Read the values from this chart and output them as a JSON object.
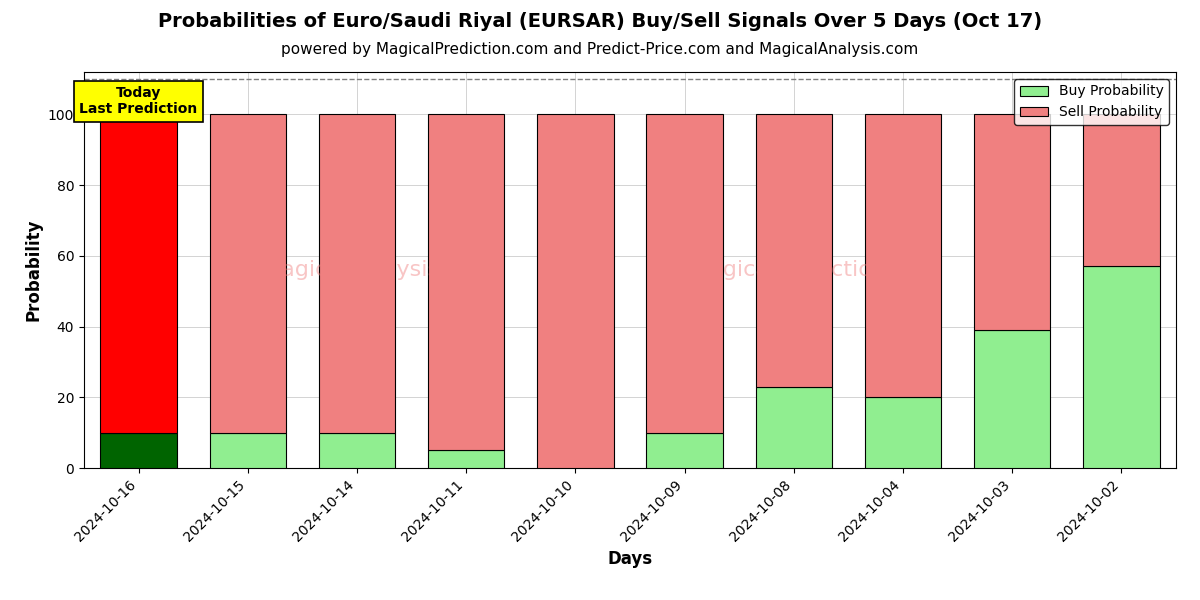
{
  "title": "Probabilities of Euro/Saudi Riyal (EURSAR) Buy/Sell Signals Over 5 Days (Oct 17)",
  "subtitle": "powered by MagicalPrediction.com and Predict-Price.com and MagicalAnalysis.com",
  "xlabel": "Days",
  "ylabel": "Probability",
  "dates": [
    "2024-10-16",
    "2024-10-15",
    "2024-10-14",
    "2024-10-11",
    "2024-10-10",
    "2024-10-09",
    "2024-10-08",
    "2024-10-04",
    "2024-10-03",
    "2024-10-02"
  ],
  "buy_values": [
    10,
    10,
    10,
    5,
    0,
    10,
    23,
    20,
    39,
    57
  ],
  "sell_values": [
    90,
    90,
    90,
    95,
    100,
    90,
    77,
    80,
    61,
    43
  ],
  "today_buy_color": "#006400",
  "today_sell_color": "#ff0000",
  "buy_color": "#90EE90",
  "sell_color": "#F08080",
  "bar_edge_color": "black",
  "bar_edge_width": 0.8,
  "today_label_bg": "#ffff00",
  "today_label_text": "Today\nLast Prediction",
  "legend_buy": "Buy Probability",
  "legend_sell": "Sell Probability",
  "ylim": [
    0,
    112
  ],
  "dashed_line_y": 110,
  "title_fontsize": 14,
  "subtitle_fontsize": 11,
  "axis_label_fontsize": 12,
  "tick_fontsize": 10
}
